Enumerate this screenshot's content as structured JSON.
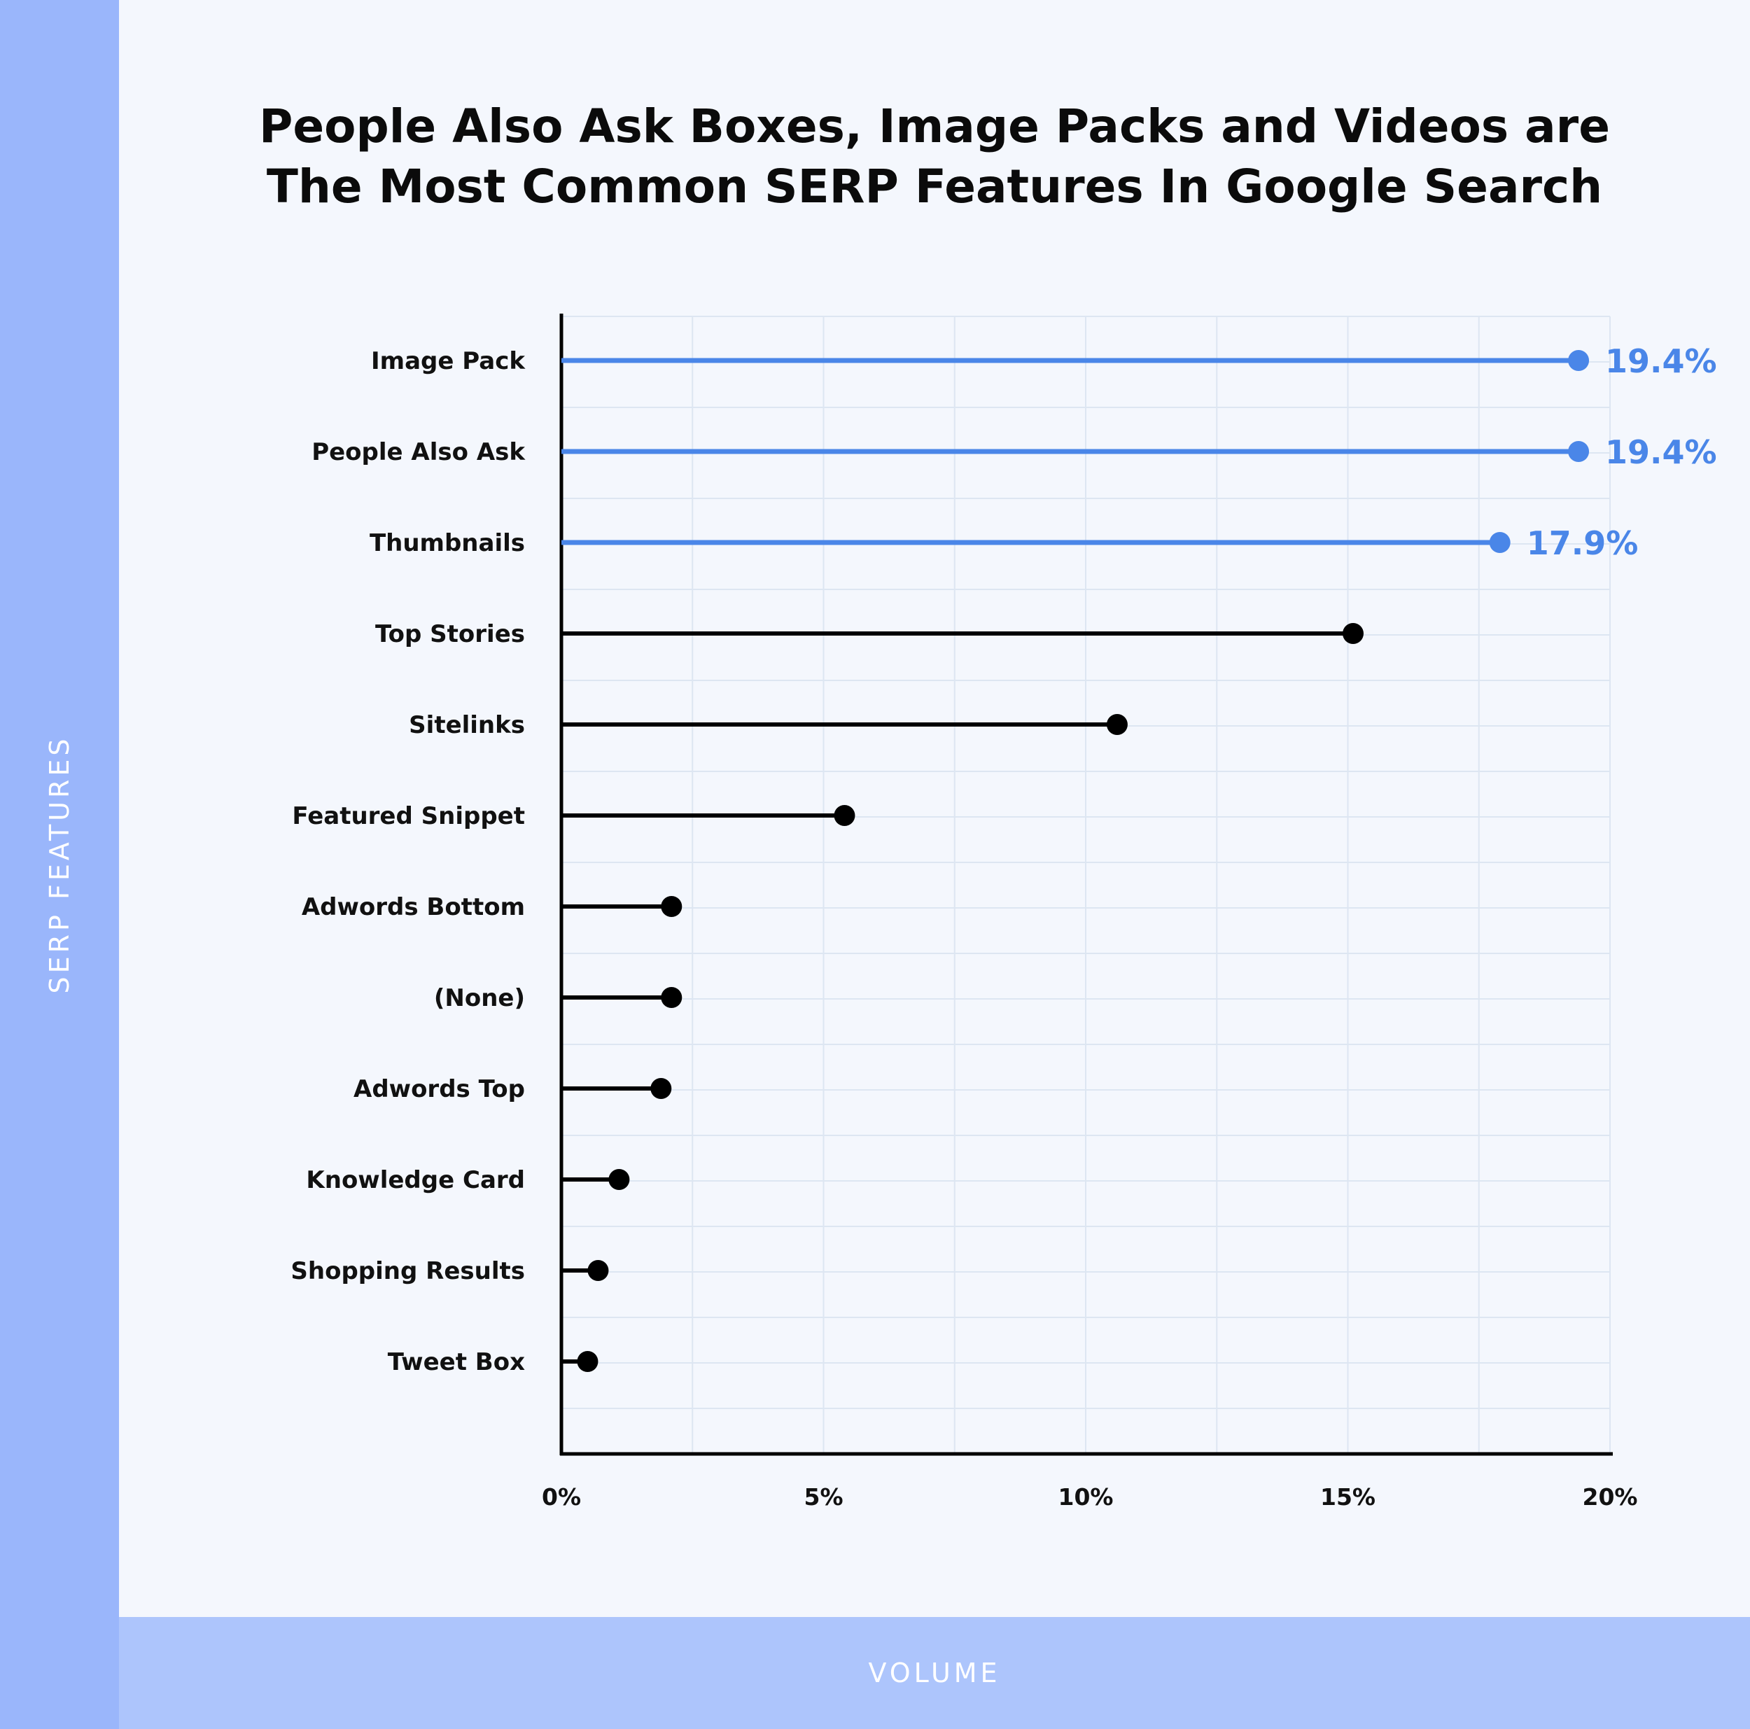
{
  "title_lines": [
    "People Also Ask Boxes, Image Packs and Videos are",
    "The Most Common SERP Features In Google Search"
  ],
  "colors": {
    "background": "#f4f7fd",
    "side_band": "#9ab6fb",
    "bottom_band": "#adc5fc",
    "highlight": "#4a86e8",
    "default_series": "#000000",
    "grid": "#dde6f2"
  },
  "chart_data": {
    "type": "lollipop",
    "title": "People Also Ask Boxes, Image Packs and Videos are The Most Common SERP Features In Google Search",
    "xlabel": "VOLUME",
    "ylabel": "SERP FEATURES",
    "xlim": [
      0,
      20
    ],
    "x_ticks": [
      "0%",
      "5%",
      "10%",
      "15%",
      "20%"
    ],
    "x_tick_values": [
      0,
      5,
      10,
      15,
      20
    ],
    "grid": true,
    "categories": [
      "Image Pack",
      "People Also Ask",
      "Thumbnails",
      "Top Stories",
      "Sitelinks",
      "Featured Snippet",
      "Adwords Bottom",
      "(None)",
      "Adwords Top",
      "Knowledge Card",
      "Shopping Results",
      "Tweet Box"
    ],
    "values": [
      19.4,
      19.4,
      17.9,
      15.1,
      10.6,
      5.4,
      2.1,
      2.1,
      1.9,
      1.1,
      0.7,
      0.5
    ],
    "highlighted": [
      true,
      true,
      true,
      false,
      false,
      false,
      false,
      false,
      false,
      false,
      false,
      false
    ],
    "data_labels": [
      "19.4%",
      "19.4%",
      "17.9%",
      "",
      "",
      "",
      "",
      "",
      "",
      "",
      "",
      ""
    ]
  }
}
